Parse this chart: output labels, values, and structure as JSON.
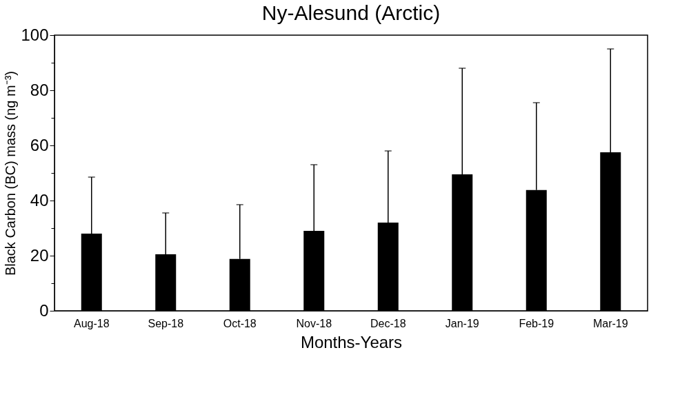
{
  "chart_data": {
    "type": "bar",
    "title": "Ny-Alesund (Arctic)",
    "xlabel": "Months-Years",
    "ylabel": "Black Carbon (BC) mass (ng m⁻³)",
    "categories": [
      "Aug-18",
      "Sep-18",
      "Oct-18",
      "Nov-18",
      "Dec-18",
      "Jan-19",
      "Feb-19",
      "Mar-19"
    ],
    "values": [
      28,
      20.5,
      18.8,
      29,
      32,
      49.5,
      43.8,
      57.5
    ],
    "errors": [
      [
        28,
        48.5
      ],
      [
        20.5,
        35.5
      ],
      [
        18.8,
        38.5
      ],
      [
        29,
        53
      ],
      [
        32,
        58
      ],
      [
        49.5,
        88
      ],
      [
        43.8,
        75.5
      ],
      [
        57.5,
        95
      ]
    ],
    "color": "#000000",
    "ylim": [
      0,
      100
    ],
    "yticks": [
      0,
      {
        "value": 10,
        "label": null
      },
      20,
      {
        "value": 30,
        "label": null
      },
      40,
      {
        "value": 50,
        "label": null
      },
      60,
      {
        "value": 70,
        "label": null
      },
      80,
      {
        "value": 90,
        "label": null
      },
      100
    ],
    "grid": false
  }
}
